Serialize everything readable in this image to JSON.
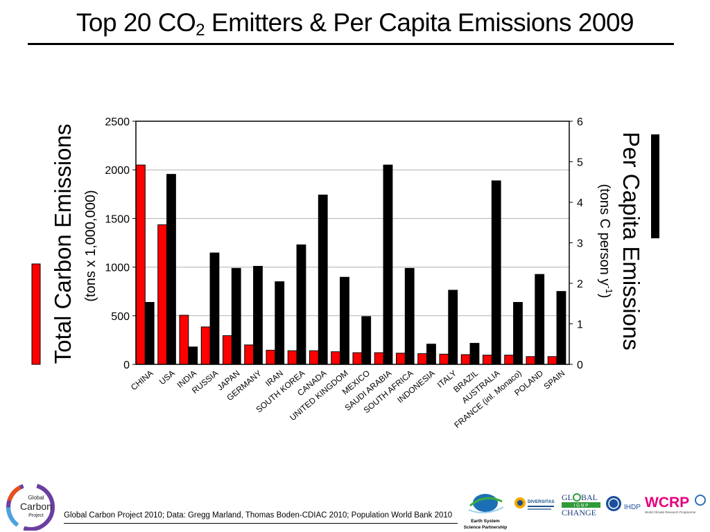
{
  "title": {
    "prefix": "Top 20 CO",
    "subscript": "2",
    "suffix": " Emitters & Per Capita Emissions 2009"
  },
  "footer": {
    "citation": "Global Carbon Project 2010; Data: Gregg Marland, Thomas Boden-CDIAC 2010; Population World Bank 2010"
  },
  "logos": {
    "gcp": [
      "Global",
      "Carbon",
      "Project"
    ],
    "essp": [
      "Earth System",
      "Science Partnership"
    ],
    "diversitas": "DIVERSITAS",
    "igbp": [
      "GL",
      "BAL",
      "I G B P",
      "CHANGE"
    ],
    "ihdp": "IHDP",
    "wcrp": "WCRP",
    "wcrp_sub": "World Climate Research Programme"
  },
  "colors": {
    "total": "#ff0000",
    "per_capita": "#000000",
    "grid": "#b0b0b0"
  },
  "chart_data": {
    "type": "bar",
    "categories": [
      "CHINA",
      "USA",
      "INDIA",
      "RUSSIA",
      "JAPAN",
      "GERMANY",
      "IRAN",
      "SOUTH KOREA",
      "CANADA",
      "UNITED KINGDOM",
      "MEXICO",
      "SAUDI ARABIA",
      "SOUTH AFRICA",
      "INDONESIA",
      "ITALY",
      "BRAZIL",
      "AUSTRALIA",
      "FRANCE (inl. Monaco)",
      "POLAND",
      "SPAIN"
    ],
    "y_left": {
      "label": "Total Carbon Emissions",
      "unit": "(tons x 1,000,000)",
      "ylim": [
        0,
        2500
      ],
      "ticks": [
        0,
        500,
        1000,
        1500,
        2000,
        2500
      ]
    },
    "y_right": {
      "label": "Per Capita Emissions",
      "unit_prefix": "(tons C person y",
      "unit_sup": "-1",
      "unit_suffix": ")",
      "ylim": [
        0,
        6
      ],
      "ticks": [
        0,
        1,
        2,
        3,
        4,
        5,
        6
      ]
    },
    "grid": true,
    "series": [
      {
        "axis": "left",
        "values": [
          2050,
          1435,
          505,
          385,
          295,
          200,
          145,
          140,
          140,
          130,
          120,
          120,
          115,
          110,
          105,
          100,
          95,
          95,
          80,
          80
        ]
      },
      {
        "axis": "right",
        "values": [
          1.53,
          4.69,
          0.43,
          2.75,
          2.37,
          2.42,
          2.04,
          2.95,
          4.18,
          2.15,
          1.18,
          4.92,
          2.37,
          0.5,
          1.83,
          0.52,
          4.53,
          1.53,
          2.22,
          1.8
        ]
      }
    ]
  }
}
